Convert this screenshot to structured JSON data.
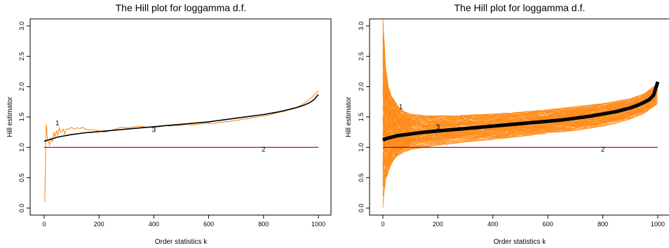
{
  "chart_data": [
    {
      "type": "line",
      "title": "The Hill plot for loggamma d.f.",
      "xlabel": "Order statistics k",
      "ylabel": "Hill estimator",
      "xlim": [
        0,
        1000
      ],
      "ylim": [
        0.0,
        3.0
      ],
      "xticks": [
        "0",
        "200",
        "400",
        "600",
        "800",
        "1000"
      ],
      "yticks": [
        "0.0",
        "0.5",
        "1.0",
        "1.5",
        "2.0",
        "2.5",
        "3.0"
      ],
      "grid": false,
      "annotations": [
        {
          "text": "1",
          "x": 48,
          "y": 1.36
        },
        {
          "text": "3",
          "x": 400,
          "y": 1.25
        },
        {
          "text": "2",
          "x": 800,
          "y": 0.93
        }
      ],
      "series": [
        {
          "color": "#ff8c1a",
          "x": [
            2,
            4,
            6,
            8,
            10,
            12,
            15,
            20,
            25,
            30,
            35,
            40,
            45,
            50,
            55,
            60,
            65,
            70,
            75,
            80,
            90,
            100,
            110,
            120,
            130,
            140,
            150,
            160,
            180,
            200,
            220,
            240,
            260,
            280,
            300,
            320,
            340,
            360,
            380,
            400,
            420,
            440,
            460,
            480,
            500,
            520,
            540,
            560,
            580,
            600,
            620,
            640,
            660,
            680,
            700,
            720,
            740,
            760,
            780,
            800,
            820,
            840,
            860,
            880,
            900,
            920,
            940,
            960,
            980,
            1000
          ],
          "y": [
            0.1,
            0.55,
            1.2,
            1.38,
            1.25,
            1.12,
            1.1,
            1.04,
            1.15,
            1.1,
            1.25,
            1.18,
            1.28,
            1.2,
            1.32,
            1.25,
            1.27,
            1.3,
            1.22,
            1.3,
            1.3,
            1.33,
            1.3,
            1.32,
            1.31,
            1.33,
            1.3,
            1.29,
            1.29,
            1.27,
            1.25,
            1.27,
            1.3,
            1.33,
            1.32,
            1.33,
            1.35,
            1.34,
            1.33,
            1.33,
            1.34,
            1.36,
            1.35,
            1.36,
            1.36,
            1.38,
            1.37,
            1.38,
            1.39,
            1.4,
            1.39,
            1.41,
            1.42,
            1.43,
            1.44,
            1.46,
            1.47,
            1.49,
            1.5,
            1.52,
            1.53,
            1.56,
            1.58,
            1.6,
            1.64,
            1.66,
            1.7,
            1.76,
            1.84,
            1.93
          ]
        },
        {
          "color": "#000000",
          "x": [
            0,
            50,
            100,
            150,
            200,
            250,
            300,
            350,
            400,
            450,
            500,
            550,
            600,
            650,
            700,
            750,
            800,
            850,
            900,
            925,
            950,
            970,
            985,
            1000
          ],
          "y": [
            1.1,
            1.17,
            1.21,
            1.24,
            1.26,
            1.28,
            1.3,
            1.32,
            1.34,
            1.36,
            1.38,
            1.4,
            1.42,
            1.45,
            1.48,
            1.51,
            1.54,
            1.58,
            1.63,
            1.66,
            1.7,
            1.74,
            1.79,
            1.87
          ]
        },
        {
          "color": "#800040",
          "x": [
            0,
            1000
          ],
          "y": [
            1.0,
            1.0
          ]
        }
      ]
    },
    {
      "type": "line",
      "title": "The Hill plot for loggamma d.f.",
      "xlabel": "Order statistics k",
      "ylabel": "Hill estimator",
      "xlim": [
        0,
        1000
      ],
      "ylim": [
        0.0,
        3.0
      ],
      "xticks": [
        "0",
        "200",
        "400",
        "600",
        "800",
        "1000"
      ],
      "yticks": [
        "0.0",
        "0.5",
        "1.0",
        "1.5",
        "2.0",
        "2.5",
        "3.0"
      ],
      "grid": false,
      "annotations": [
        {
          "text": "1",
          "x": 65,
          "y": 1.63
        },
        {
          "text": "3",
          "x": 200,
          "y": 1.3
        },
        {
          "text": "2",
          "x": 800,
          "y": 0.93
        }
      ],
      "series": [
        {
          "color": "#ff8c1a",
          "x": [
            0,
            5,
            10,
            20,
            30,
            40,
            60,
            80,
            100,
            150,
            200,
            250,
            300,
            400,
            500,
            600,
            700,
            800,
            850,
            900,
            950,
            1000
          ],
          "y": [
            3.1,
            2.7,
            2.3,
            2.0,
            1.85,
            1.78,
            1.65,
            1.58,
            1.55,
            1.52,
            1.52,
            1.52,
            1.53,
            1.55,
            1.58,
            1.62,
            1.67,
            1.72,
            1.76,
            1.8,
            1.88,
            2.05
          ]
        },
        {
          "color": "#ff8c1a",
          "x": [
            0,
            5,
            10,
            20,
            30,
            40,
            60,
            80,
            100,
            150,
            200,
            250,
            300,
            400,
            500,
            600,
            700,
            800,
            850,
            900,
            950,
            1000
          ],
          "y": [
            0.0,
            0.3,
            0.45,
            0.6,
            0.72,
            0.8,
            0.88,
            0.93,
            0.96,
            1.0,
            1.03,
            1.06,
            1.09,
            1.13,
            1.18,
            1.23,
            1.28,
            1.35,
            1.4,
            1.47,
            1.56,
            1.72
          ]
        },
        {
          "color": "#000000",
          "x": [
            0,
            10,
            25,
            50,
            100,
            150,
            200,
            250,
            300,
            350,
            400,
            450,
            500,
            550,
            600,
            650,
            700,
            750,
            800,
            850,
            900,
            925,
            950,
            970,
            985,
            1000
          ],
          "y": [
            1.12,
            1.14,
            1.16,
            1.19,
            1.22,
            1.25,
            1.27,
            1.29,
            1.31,
            1.33,
            1.35,
            1.37,
            1.39,
            1.41,
            1.43,
            1.45,
            1.48,
            1.51,
            1.55,
            1.59,
            1.65,
            1.69,
            1.74,
            1.79,
            1.86,
            2.08
          ]
        },
        {
          "color": "#800040",
          "x": [
            0,
            1000
          ],
          "y": [
            1.0,
            1.0
          ]
        }
      ]
    }
  ]
}
